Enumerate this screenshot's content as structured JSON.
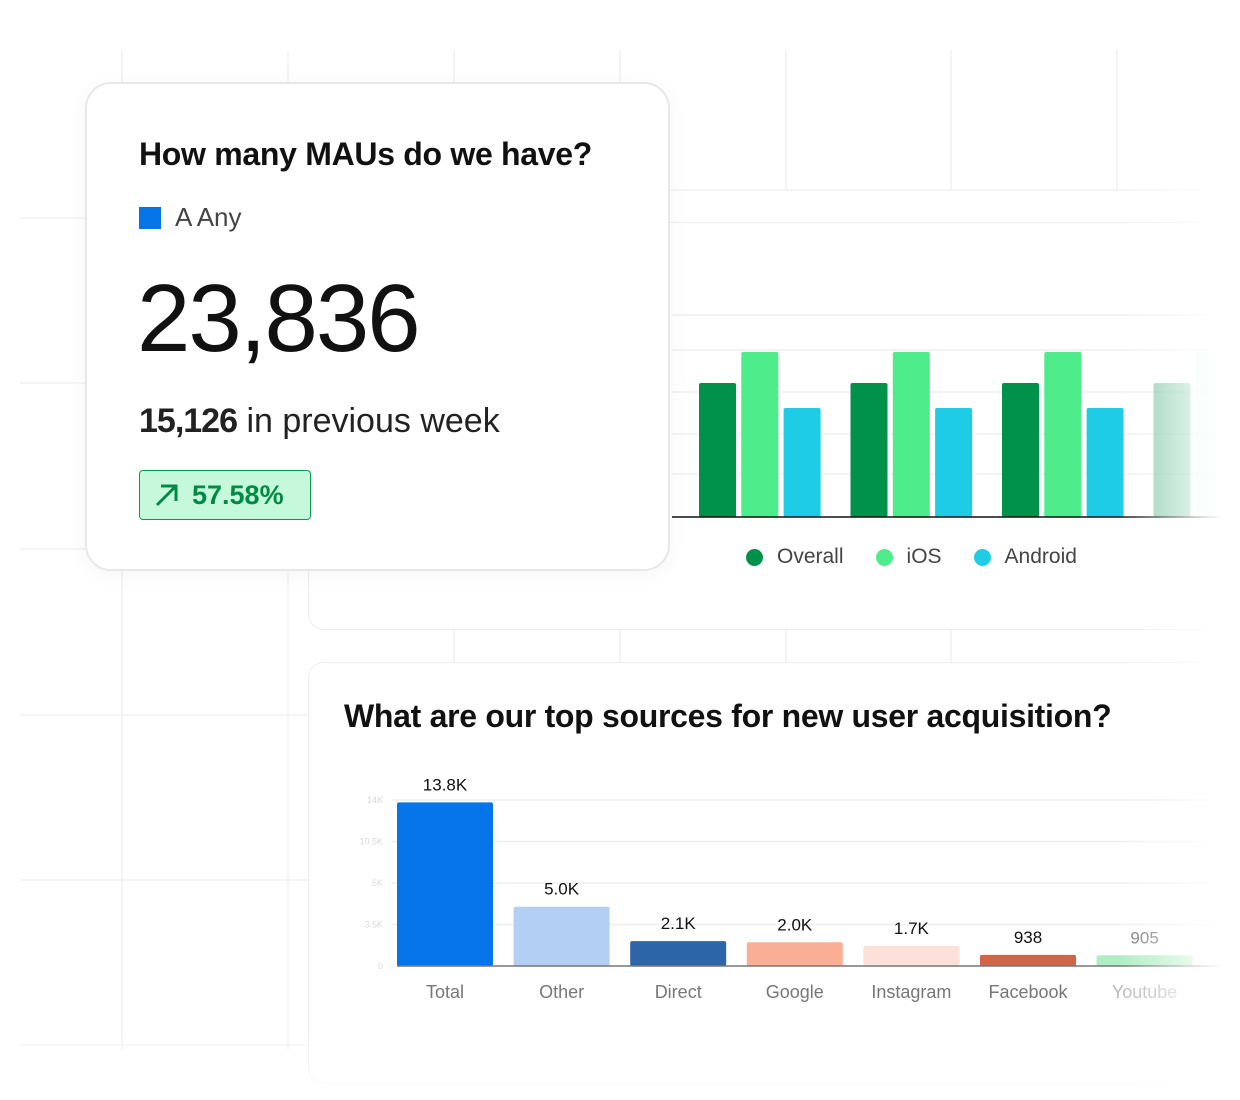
{
  "mau_card": {
    "title": "How many MAUs do we have?",
    "legend_label": "A Any",
    "legend_color": "#0574e8",
    "value": "23,836",
    "previous_value": "15,126",
    "previous_label": "in previous week",
    "change": "57.58%",
    "change_icon": "arrow-up-right-icon"
  },
  "platform_chart": {
    "chart_data": {
      "type": "bar",
      "groups": 4,
      "series": [
        {
          "name": "Overall",
          "color": "#00924b",
          "values": [
            134,
            134,
            134,
            134
          ]
        },
        {
          "name": "iOS",
          "color": "#4fec8b",
          "values": [
            165,
            165,
            165,
            165
          ]
        },
        {
          "name": "Android",
          "color": "#1ecde5",
          "values": [
            109,
            109,
            109,
            109
          ]
        }
      ],
      "legend": "bottom",
      "grid": true
    }
  },
  "acquisition_chart": {
    "title": "What are our top sources for new user acquisition?",
    "chart_data": {
      "type": "bar",
      "categories": [
        "Total",
        "Other",
        "Direct",
        "Google",
        "Instagram",
        "Facebook",
        "Youtube"
      ],
      "values": [
        13800,
        5000,
        2100,
        2000,
        1700,
        938,
        905
      ],
      "data_labels": [
        "13.8K",
        "5.0K",
        "2.1K",
        "2.0K",
        "1.7K",
        "938",
        "905"
      ],
      "colors": [
        "#0574e8",
        "#b3cff3",
        "#2c66a8",
        "#f9ae95",
        "#fde0d7",
        "#d2644a",
        "#8de7a8"
      ],
      "y_ticks": [
        "14K",
        "10.5K",
        "5K",
        "3.5K",
        "0"
      ],
      "ylim": [
        0,
        14000
      ],
      "grid": true
    }
  }
}
